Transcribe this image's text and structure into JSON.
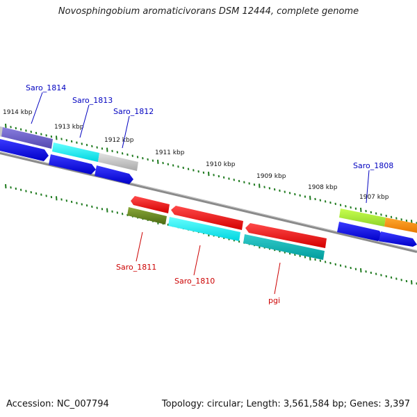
{
  "title": "Novosphingobium aromaticivorans DSM 12444, complete genome",
  "footer": {
    "accession": "Accession: NC_007794",
    "summary": "Topology: circular; Length: 3,561,584 bp; Genes: 3,397"
  },
  "ruler": {
    "labels": [
      "1914 kbp",
      "1913 kbp",
      "1912 kbp",
      "1911 kbp",
      "1910 kbp",
      "1909 kbp",
      "1908 kbp",
      "1907 kbp"
    ]
  },
  "genes": {
    "forward": [
      "Saro_1814",
      "Saro_1813",
      "Saro_1812",
      "Saro_1808"
    ],
    "reverse": [
      "Saro_1811",
      "Saro_1810",
      "pgi"
    ]
  },
  "colors": {
    "forward_label": "#0000c0",
    "reverse_label": "#cc0000",
    "tick": "#1f7a1f",
    "backbone": "#808080"
  }
}
